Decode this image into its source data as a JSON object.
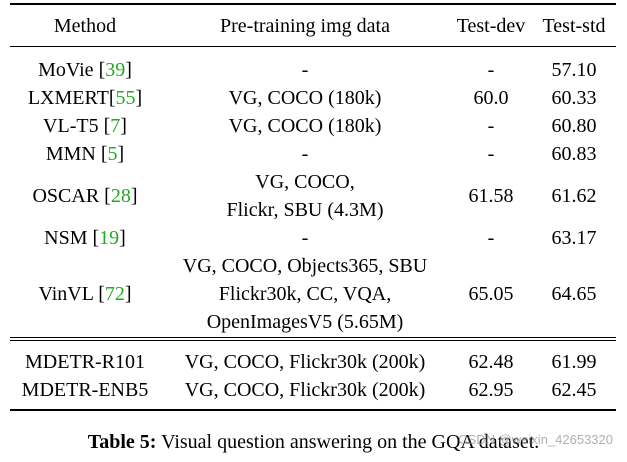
{
  "table": {
    "headers": [
      "Method",
      "Pre-training img data",
      "Test-dev",
      "Test-std"
    ],
    "groups": [
      [
        {
          "name": "MoVie",
          "cite": "39",
          "sep": " ",
          "data": [
            "-"
          ],
          "dev": "-",
          "std": "57.10"
        },
        {
          "name": "LXMERT",
          "cite": "55",
          "sep": "",
          "data": [
            "VG, COCO (180k)"
          ],
          "dev": "60.0",
          "std": "60.33"
        },
        {
          "name": "VL-T5",
          "cite": "7",
          "sep": " ",
          "data": [
            "VG, COCO (180k)"
          ],
          "dev": "-",
          "std": "60.80"
        },
        {
          "name": "MMN",
          "cite": "5",
          "sep": " ",
          "data": [
            "-"
          ],
          "dev": "-",
          "std": "60.83"
        },
        {
          "name": "OSCAR",
          "cite": "28",
          "sep": " ",
          "data": [
            "VG, COCO,",
            "Flickr, SBU (4.3M)"
          ],
          "dev": "61.58",
          "std": "61.62"
        },
        {
          "name": "NSM",
          "cite": "19",
          "sep": " ",
          "data": [
            "-"
          ],
          "dev": "-",
          "std": "63.17"
        },
        {
          "name": "VinVL",
          "cite": "72",
          "sep": " ",
          "data": [
            "VG, COCO, Objects365, SBU",
            "Flickr30k, CC, VQA,",
            "OpenImagesV5 (5.65M)"
          ],
          "dev": "65.05",
          "std": "64.65"
        }
      ],
      [
        {
          "name": "MDETR-R101",
          "cite": "",
          "sep": "",
          "data": [
            "VG, COCO, Flickr30k (200k)"
          ],
          "dev": "62.48",
          "std": "61.99"
        },
        {
          "name": "MDETR-ENB5",
          "cite": "",
          "sep": "",
          "data": [
            "VG, COCO, Flickr30k (200k)"
          ],
          "dev": "62.95",
          "std": "62.45"
        }
      ]
    ]
  },
  "caption": {
    "label": "Table 5:",
    "text": " Visual question answering on the GQA dataset."
  },
  "watermark": "CSDN @weixin_42653320"
}
